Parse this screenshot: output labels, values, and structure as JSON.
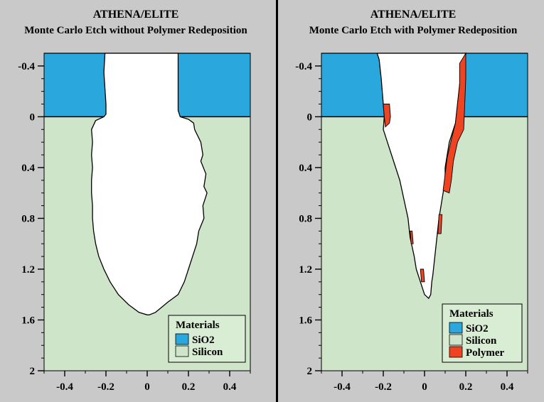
{
  "panels": [
    {
      "title": "ATHENA/ELITE",
      "subtitle": "Monte Carlo Etch without Polymer Redeposition",
      "legend": {
        "title": "Materials",
        "items": [
          {
            "label": "SiO2",
            "color": "#2aa7dd"
          },
          {
            "label": "Silicon",
            "color": "#cfe5c9"
          }
        ]
      }
    },
    {
      "title": "ATHENA/ELITE",
      "subtitle": "Monte Carlo Etch with Polymer Redeposition",
      "legend": {
        "title": "Materials",
        "items": [
          {
            "label": "SiO2",
            "color": "#2aa7dd"
          },
          {
            "label": "Silicon",
            "color": "#cfe5c9"
          },
          {
            "label": "Polymer",
            "color": "#ee4422"
          }
        ]
      }
    }
  ],
  "axes": {
    "x_range": [
      -0.5,
      0.5
    ],
    "y_range": [
      -0.5,
      2
    ],
    "x_ticks": [
      {
        "value": -0.4,
        "label": "-0.4"
      },
      {
        "value": -0.2,
        "label": "-0.2"
      },
      {
        "value": 0,
        "label": "0"
      },
      {
        "value": 0.2,
        "label": "0.2"
      },
      {
        "value": 0.4,
        "label": "0.4"
      }
    ],
    "y_ticks": [
      {
        "value": -0.4,
        "label": "-0.4"
      },
      {
        "value": 0,
        "label": "0"
      },
      {
        "value": 0.4,
        "label": "0.4"
      },
      {
        "value": 0.8,
        "label": "0.8"
      },
      {
        "value": 1.2,
        "label": "1.2"
      },
      {
        "value": 1.6,
        "label": "1.6"
      },
      {
        "value": 2,
        "label": "2"
      }
    ]
  },
  "materials": {
    "oxide_top": -0.5,
    "oxide_bottom": 0
  },
  "profiles": {
    "without_polymer": {
      "left_edge": [
        [
          -0.205,
          -0.5
        ],
        [
          -0.21,
          -0.35
        ],
        [
          -0.2,
          -0.1
        ],
        [
          -0.2,
          -0.02
        ],
        [
          -0.21,
          0
        ],
        [
          -0.25,
          0.03
        ],
        [
          -0.27,
          0.1
        ],
        [
          -0.265,
          0.2
        ],
        [
          -0.27,
          0.3
        ],
        [
          -0.265,
          0.4
        ],
        [
          -0.27,
          0.5
        ],
        [
          -0.27,
          0.6
        ],
        [
          -0.265,
          0.7
        ],
        [
          -0.265,
          0.8
        ],
        [
          -0.26,
          0.9
        ],
        [
          -0.25,
          1.0
        ],
        [
          -0.235,
          1.1
        ],
        [
          -0.21,
          1.2
        ],
        [
          -0.18,
          1.3
        ],
        [
          -0.14,
          1.4
        ],
        [
          -0.09,
          1.48
        ],
        [
          -0.04,
          1.54
        ],
        [
          0.0,
          1.56
        ]
      ],
      "right_edge": [
        [
          0.15,
          -0.5
        ],
        [
          0.15,
          -0.3
        ],
        [
          0.15,
          -0.05
        ],
        [
          0.16,
          0
        ],
        [
          0.2,
          0.02
        ],
        [
          0.225,
          0.05
        ],
        [
          0.23,
          0.1
        ],
        [
          0.26,
          0.2
        ],
        [
          0.27,
          0.3
        ],
        [
          0.26,
          0.35
        ],
        [
          0.285,
          0.45
        ],
        [
          0.275,
          0.55
        ],
        [
          0.29,
          0.6
        ],
        [
          0.27,
          0.7
        ],
        [
          0.275,
          0.8
        ],
        [
          0.25,
          0.9
        ],
        [
          0.24,
          1.0
        ],
        [
          0.22,
          1.1
        ],
        [
          0.2,
          1.2
        ],
        [
          0.18,
          1.3
        ],
        [
          0.15,
          1.4
        ],
        [
          0.1,
          1.46
        ],
        [
          0.07,
          1.5
        ],
        [
          0.04,
          1.54
        ],
        [
          0.01,
          1.56
        ]
      ]
    },
    "with_polymer": {
      "left_edge": [
        [
          -0.23,
          -0.5
        ],
        [
          -0.22,
          -0.45
        ],
        [
          -0.21,
          -0.3
        ],
        [
          -0.2,
          -0.1
        ],
        [
          -0.195,
          0
        ],
        [
          -0.2,
          0.1
        ],
        [
          -0.18,
          0.2
        ],
        [
          -0.15,
          0.35
        ],
        [
          -0.12,
          0.5
        ],
        [
          -0.1,
          0.65
        ],
        [
          -0.08,
          0.8
        ],
        [
          -0.07,
          0.95
        ],
        [
          -0.05,
          1.1
        ],
        [
          -0.04,
          1.2
        ],
        [
          -0.02,
          1.3
        ],
        [
          0.0,
          1.4
        ],
        [
          0.02,
          1.43
        ]
      ],
      "right_edge": [
        [
          0.2,
          -0.5
        ],
        [
          0.19,
          -0.45
        ],
        [
          0.18,
          -0.35
        ],
        [
          0.17,
          -0.25
        ],
        [
          0.16,
          -0.1
        ],
        [
          0.15,
          0.05
        ],
        [
          0.14,
          0.1
        ],
        [
          0.12,
          0.2
        ],
        [
          0.11,
          0.3
        ],
        [
          0.1,
          0.4
        ],
        [
          0.1,
          0.5
        ],
        [
          0.09,
          0.6
        ],
        [
          0.08,
          0.7
        ],
        [
          0.07,
          0.8
        ],
        [
          0.06,
          0.95
        ],
        [
          0.05,
          1.1
        ],
        [
          0.04,
          1.25
        ],
        [
          0.035,
          1.3
        ],
        [
          0.03,
          1.4
        ],
        [
          0.02,
          1.43
        ]
      ],
      "polymer_regions": [
        [
          [
            -0.2,
            -0.1
          ],
          [
            -0.17,
            -0.1
          ],
          [
            -0.165,
            0
          ],
          [
            -0.17,
            0.05
          ],
          [
            -0.19,
            0.08
          ],
          [
            -0.195,
            0
          ]
        ],
        [
          [
            0.17,
            -0.42
          ],
          [
            0.2,
            -0.5
          ],
          [
            0.2,
            -0.3
          ],
          [
            0.19,
            0.1
          ],
          [
            0.16,
            0.2
          ],
          [
            0.14,
            0.35
          ],
          [
            0.13,
            0.5
          ],
          [
            0.12,
            0.6
          ],
          [
            0.09,
            0.58
          ],
          [
            0.1,
            0.45
          ],
          [
            0.11,
            0.32
          ],
          [
            0.13,
            0.18
          ],
          [
            0.15,
            0.05
          ],
          [
            0.16,
            -0.1
          ],
          [
            0.17,
            -0.25
          ]
        ],
        [
          [
            0.07,
            0.77
          ],
          [
            0.085,
            0.77
          ],
          [
            0.08,
            0.92
          ],
          [
            0.065,
            0.92
          ]
        ],
        [
          [
            -0.07,
            0.9
          ],
          [
            -0.06,
            0.9
          ],
          [
            -0.055,
            1.0
          ],
          [
            -0.065,
            1.0
          ]
        ],
        [
          [
            -0.02,
            1.2
          ],
          [
            -0.005,
            1.2
          ],
          [
            0.0,
            1.3
          ],
          [
            -0.015,
            1.3
          ]
        ]
      ]
    }
  }
}
